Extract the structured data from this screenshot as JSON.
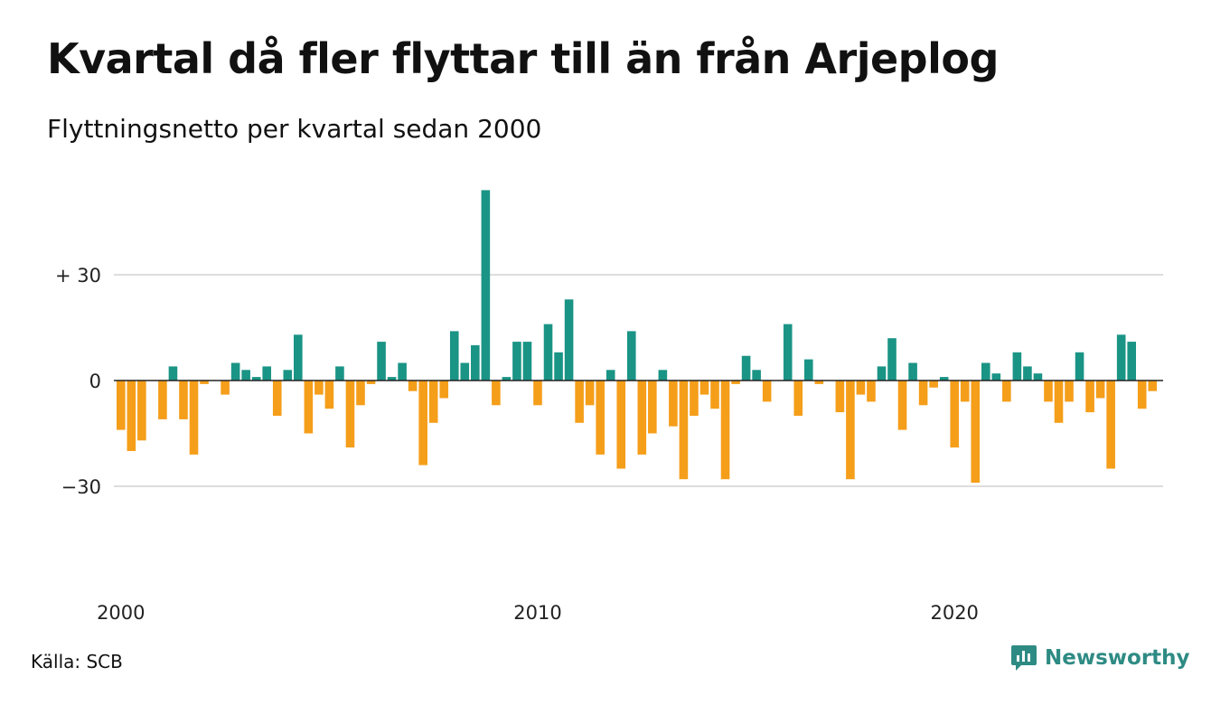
{
  "title": "Kvartal då fler flyttar till än från Arjeplog",
  "subtitle": "Flyttningsnetto per kvartal sedan 2000",
  "source": "Källa: SCB",
  "brand": {
    "name": "Newsworthy",
    "icon": "newsworthy-logo-icon",
    "color": "#2e8b84"
  },
  "colors": {
    "positive": "#1a9485",
    "negative": "#f59e1a",
    "grid": "#dddddd",
    "zero": "#222222"
  },
  "chart_data": {
    "type": "bar",
    "title": "Kvartal då fler flyttar till än från Arjeplog",
    "subtitle": "Flyttningsnetto per kvartal sedan 2000",
    "xlabel": "",
    "ylabel": "",
    "ylim": [
      -55,
      55
    ],
    "yticks": [
      {
        "value": 30,
        "label": "+ 30"
      },
      {
        "value": 0,
        "label": "0"
      },
      {
        "value": -30,
        "label": "−30"
      }
    ],
    "xticks": [
      {
        "year": 2000,
        "label": "2000"
      },
      {
        "year": 2010,
        "label": "2010"
      },
      {
        "year": 2020,
        "label": "2020"
      }
    ],
    "start_year": 2000,
    "grid": true,
    "legend": "none",
    "values": [
      -14,
      -20,
      -17,
      0,
      -11,
      4,
      -11,
      -21,
      -1,
      0,
      -4,
      5,
      3,
      1,
      4,
      -10,
      3,
      13,
      -15,
      -4,
      -8,
      4,
      -19,
      -7,
      -1,
      11,
      1,
      5,
      -3,
      -24,
      -12,
      -5,
      14,
      5,
      10,
      54,
      -7,
      1,
      11,
      11,
      -7,
      16,
      8,
      23,
      -12,
      -7,
      -21,
      3,
      -25,
      14,
      -21,
      -15,
      3,
      -13,
      -28,
      -10,
      -4,
      -8,
      -28,
      -1,
      7,
      3,
      -6,
      0,
      16,
      -10,
      6,
      -1,
      0,
      -9,
      -28,
      -4,
      -6,
      4,
      12,
      -14,
      5,
      -7,
      -2,
      1,
      -19,
      -6,
      -29,
      5,
      2,
      -6,
      8,
      4,
      2,
      -6,
      -12,
      -6,
      8,
      -9,
      -5,
      -25,
      13,
      11,
      -8,
      -3
    ]
  }
}
